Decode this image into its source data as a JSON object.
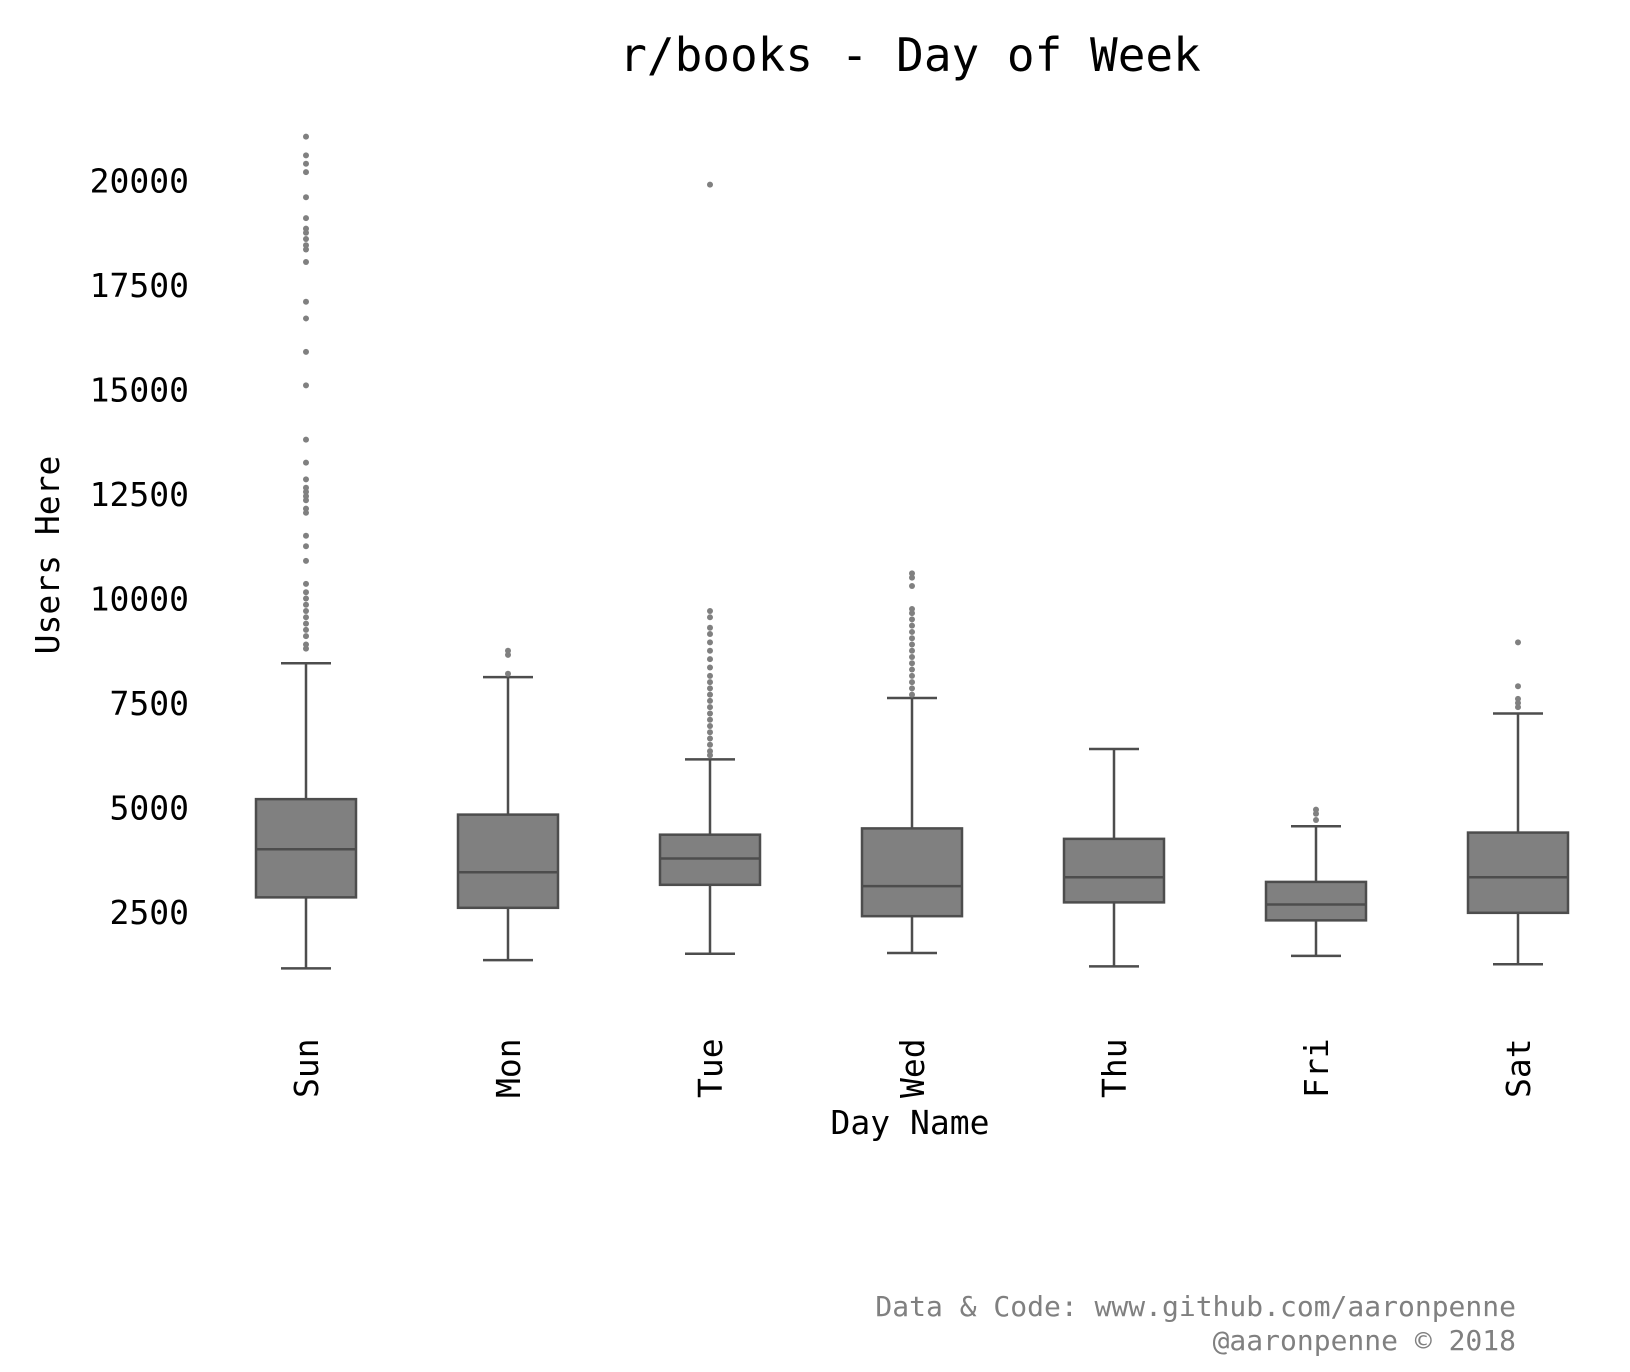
{
  "chart_data": {
    "type": "box",
    "title": "r/books - Day of Week",
    "xlabel": "Day Name",
    "ylabel": "Users Here",
    "ylim": [
      0,
      21500
    ],
    "yticks": [
      2500,
      5000,
      7500,
      10000,
      12500,
      15000,
      17500,
      20000
    ],
    "grid": false,
    "colors": {
      "box_fill": "#808080",
      "box_edge": "#4d4d4d",
      "outlier": "#808080",
      "text": "#000000",
      "credit": "#808080"
    },
    "categories": [
      "Sun",
      "Mon",
      "Tue",
      "Wed",
      "Thu",
      "Fri",
      "Sat"
    ],
    "boxes": [
      {
        "label": "Sun",
        "whisker_low": 1150,
        "q1": 2850,
        "median": 4000,
        "q3": 5200,
        "whisker_high": 8450,
        "outliers": [
          8800,
          8900,
          9100,
          9250,
          9400,
          9550,
          9700,
          9850,
          10000,
          10150,
          10350,
          10900,
          11250,
          11500,
          12050,
          12150,
          12350,
          12450,
          12550,
          12650,
          12850,
          13250,
          13800,
          15100,
          15900,
          16700,
          17100,
          18050,
          18350,
          18450,
          18600,
          18750,
          18850,
          19100,
          19600,
          20200,
          20400,
          20600,
          21050
        ]
      },
      {
        "label": "Mon",
        "whisker_low": 1350,
        "q1": 2600,
        "median": 3450,
        "q3": 4830,
        "whisker_high": 8120,
        "outliers": [
          8200,
          8650,
          8750
        ]
      },
      {
        "label": "Tue",
        "whisker_low": 1500,
        "q1": 3150,
        "median": 3780,
        "q3": 4350,
        "whisker_high": 6150,
        "outliers": [
          6250,
          6350,
          6500,
          6650,
          6800,
          6950,
          7100,
          7250,
          7400,
          7550,
          7700,
          7850,
          8000,
          8150,
          8350,
          8550,
          8750,
          8950,
          9150,
          9300,
          9550,
          9700,
          19900
        ]
      },
      {
        "label": "Wed",
        "whisker_low": 1520,
        "q1": 2400,
        "median": 3120,
        "q3": 4500,
        "whisker_high": 7620,
        "outliers": [
          7700,
          7850,
          8000,
          8150,
          8300,
          8450,
          8600,
          8750,
          8900,
          9050,
          9200,
          9350,
          9500,
          9650,
          9750,
          10300,
          10500,
          10600
        ]
      },
      {
        "label": "Thu",
        "whisker_low": 1200,
        "q1": 2730,
        "median": 3330,
        "q3": 4250,
        "whisker_high": 6400,
        "outliers": []
      },
      {
        "label": "Fri",
        "whisker_low": 1450,
        "q1": 2300,
        "median": 2680,
        "q3": 3220,
        "whisker_high": 4550,
        "outliers": [
          4700,
          4850,
          4950
        ]
      },
      {
        "label": "Sat",
        "whisker_low": 1250,
        "q1": 2480,
        "median": 3330,
        "q3": 4400,
        "whisker_high": 7250,
        "outliers": [
          7400,
          7500,
          7600,
          7900,
          8950
        ]
      }
    ]
  },
  "credits": {
    "line1": "Data & Code: www.github.com/aaronpenne",
    "line2": "@aaronpenne © 2018"
  }
}
